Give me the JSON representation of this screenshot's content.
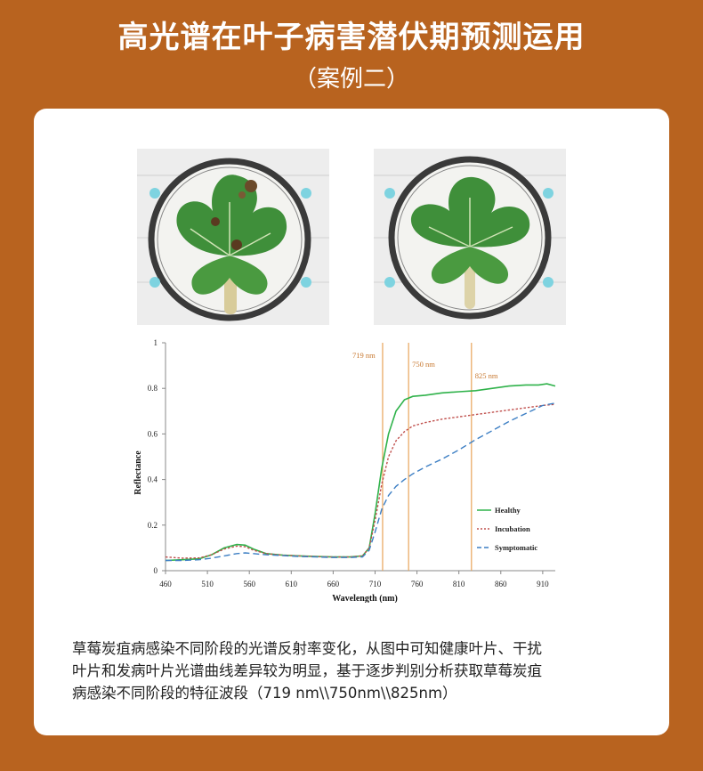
{
  "header": {
    "title": "高光谱在叶子病害潜伏期预测运用",
    "subtitle": "（案例二）"
  },
  "caption_lines": [
    "草莓炭疽病感染不同阶段的光谱反射率变化，从图中可知健康叶片、干扰",
    "叶片和发病叶片光谱曲线差异较为明显，基于逐步判别分析获取草莓炭疽",
    "病感染不同阶段的特征波段（719 nm\\\\750nm\\\\825nm）"
  ],
  "colors": {
    "background": "#b8631f",
    "healthy": "#2fb24a",
    "incubation": "#c0504d",
    "symptomatic": "#3d7fc4",
    "marker_line": "#e8a45a"
  },
  "chart_data": {
    "type": "line",
    "xlabel": "Wavelength (nm)",
    "ylabel": "Reflectance",
    "xlim": [
      460,
      925
    ],
    "ylim": [
      0,
      1
    ],
    "xticks": [
      460,
      510,
      560,
      610,
      660,
      710,
      760,
      810,
      860,
      910
    ],
    "yticks": [
      0,
      0.2,
      0.4,
      0.6,
      0.8,
      1
    ],
    "ytick_labels": [
      "0",
      "0.2",
      "0.4",
      "0.6",
      "0.8",
      "1"
    ],
    "grid": false,
    "legend_position": "right",
    "markers": [
      {
        "x": 719,
        "label": "719 nm"
      },
      {
        "x": 750,
        "label": "750 nm"
      },
      {
        "x": 825,
        "label": "825 nm"
      }
    ],
    "series": [
      {
        "name": "Healthy",
        "style": "solid",
        "points": [
          [
            460,
            0.045
          ],
          [
            480,
            0.048
          ],
          [
            500,
            0.052
          ],
          [
            515,
            0.07
          ],
          [
            530,
            0.1
          ],
          [
            545,
            0.115
          ],
          [
            555,
            0.112
          ],
          [
            565,
            0.095
          ],
          [
            580,
            0.075
          ],
          [
            600,
            0.068
          ],
          [
            620,
            0.065
          ],
          [
            640,
            0.062
          ],
          [
            660,
            0.06
          ],
          [
            680,
            0.06
          ],
          [
            695,
            0.065
          ],
          [
            703,
            0.1
          ],
          [
            710,
            0.25
          ],
          [
            718,
            0.45
          ],
          [
            726,
            0.6
          ],
          [
            735,
            0.7
          ],
          [
            745,
            0.75
          ],
          [
            755,
            0.765
          ],
          [
            770,
            0.77
          ],
          [
            790,
            0.78
          ],
          [
            810,
            0.785
          ],
          [
            830,
            0.79
          ],
          [
            850,
            0.8
          ],
          [
            870,
            0.81
          ],
          [
            890,
            0.815
          ],
          [
            905,
            0.815
          ],
          [
            915,
            0.82
          ],
          [
            925,
            0.81
          ]
        ]
      },
      {
        "name": "Incubation",
        "style": "dotted",
        "points": [
          [
            460,
            0.06
          ],
          [
            480,
            0.055
          ],
          [
            500,
            0.056
          ],
          [
            515,
            0.07
          ],
          [
            530,
            0.095
          ],
          [
            545,
            0.108
          ],
          [
            555,
            0.105
          ],
          [
            565,
            0.09
          ],
          [
            580,
            0.075
          ],
          [
            600,
            0.068
          ],
          [
            620,
            0.065
          ],
          [
            640,
            0.062
          ],
          [
            660,
            0.06
          ],
          [
            680,
            0.06
          ],
          [
            695,
            0.065
          ],
          [
            703,
            0.1
          ],
          [
            710,
            0.22
          ],
          [
            718,
            0.38
          ],
          [
            726,
            0.5
          ],
          [
            735,
            0.57
          ],
          [
            745,
            0.61
          ],
          [
            755,
            0.635
          ],
          [
            770,
            0.65
          ],
          [
            790,
            0.665
          ],
          [
            810,
            0.675
          ],
          [
            830,
            0.685
          ],
          [
            850,
            0.695
          ],
          [
            870,
            0.705
          ],
          [
            890,
            0.715
          ],
          [
            910,
            0.725
          ],
          [
            925,
            0.73
          ]
        ]
      },
      {
        "name": "Symptomatic",
        "style": "dashed",
        "points": [
          [
            460,
            0.045
          ],
          [
            480,
            0.045
          ],
          [
            500,
            0.048
          ],
          [
            515,
            0.055
          ],
          [
            530,
            0.065
          ],
          [
            545,
            0.075
          ],
          [
            555,
            0.078
          ],
          [
            565,
            0.075
          ],
          [
            580,
            0.07
          ],
          [
            600,
            0.066
          ],
          [
            620,
            0.062
          ],
          [
            640,
            0.06
          ],
          [
            660,
            0.058
          ],
          [
            680,
            0.058
          ],
          [
            695,
            0.06
          ],
          [
            703,
            0.09
          ],
          [
            710,
            0.17
          ],
          [
            718,
            0.27
          ],
          [
            726,
            0.33
          ],
          [
            735,
            0.37
          ],
          [
            745,
            0.4
          ],
          [
            755,
            0.425
          ],
          [
            770,
            0.455
          ],
          [
            790,
            0.49
          ],
          [
            810,
            0.53
          ],
          [
            830,
            0.575
          ],
          [
            850,
            0.615
          ],
          [
            870,
            0.655
          ],
          [
            890,
            0.69
          ],
          [
            910,
            0.725
          ],
          [
            925,
            0.735
          ]
        ]
      }
    ]
  }
}
